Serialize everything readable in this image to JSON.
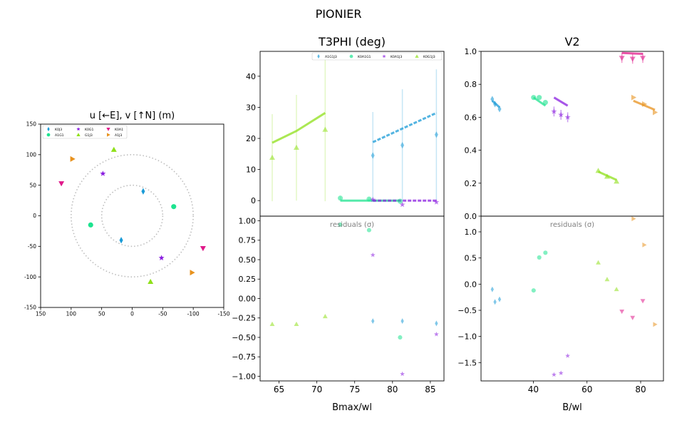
{
  "figure": {
    "title": "PIONIER"
  },
  "colors": {
    "K0J3": "#1a9bd7",
    "A1G1": "#1de38f",
    "K0G1": "#8a1ee0",
    "G1J3": "#8fe019",
    "K0A1": "#e0198a",
    "A1J3": "#e8921e",
    "K0A1G1": "#1de38f",
    "A1G1J3": "#1a9bd7",
    "K0A1J3": "#8a1ee0",
    "K0G1J3": "#8fe019"
  },
  "chart_data": [
    {
      "id": "uv",
      "type": "scatter",
      "title": "u [←E], v [↑N] (m)",
      "xlim": [
        150,
        -150
      ],
      "ylim": [
        -150,
        150
      ],
      "xticks": [
        150,
        100,
        50,
        0,
        -50,
        -100,
        -150
      ],
      "yticks": [
        150,
        100,
        50,
        0,
        -50,
        -100,
        -150
      ],
      "circles_radius": [
        50,
        100
      ],
      "legend": {
        "position": "upper-left",
        "entries": [
          "K0J3",
          "A1G1",
          "K0G1",
          "G1J3",
          "K0A1",
          "A1J3"
        ]
      },
      "series": [
        {
          "name": "K0J3",
          "marker": "diamond",
          "points": [
            [
              -18,
              40
            ],
            [
              18,
              -40
            ]
          ]
        },
        {
          "name": "A1G1",
          "marker": "circle",
          "points": [
            [
              -68,
              15
            ],
            [
              68,
              -15
            ]
          ]
        },
        {
          "name": "K0G1",
          "marker": "star",
          "points": [
            [
              48,
              69
            ],
            [
              -48,
              -69
            ]
          ]
        },
        {
          "name": "G1J3",
          "marker": "triangle-up",
          "points": [
            [
              30,
              108
            ],
            [
              -30,
              -108
            ]
          ]
        },
        {
          "name": "K0A1",
          "marker": "triangle-down",
          "points": [
            [
              116,
              53
            ],
            [
              -116,
              -53
            ]
          ]
        },
        {
          "name": "A1J3",
          "marker": "triangle-right",
          "points": [
            [
              98,
              93
            ],
            [
              -98,
              -93
            ]
          ]
        }
      ]
    },
    {
      "id": "t3phi",
      "type": "scatter",
      "title": "T3PHI (deg)",
      "xlim": [
        62.5,
        86.8
      ],
      "ylim": [
        -5,
        48
      ],
      "yticks": [
        0,
        10,
        20,
        30,
        40
      ],
      "legend": {
        "position": "top-right",
        "entries": [
          "A1G1J3",
          "K0A1G1",
          "K0A1J3",
          "K0G1J3"
        ]
      },
      "series": [
        {
          "name": "A1G1J3",
          "marker": "diamond",
          "x": [
            77.4,
            81.3,
            85.8
          ],
          "y": [
            14.5,
            17.8,
            21.2
          ],
          "err": [
            14,
            18,
            21
          ],
          "model": [
            [
              77.4,
              18.8
            ],
            [
              85.8,
              28.2
            ]
          ]
        },
        {
          "name": "K0A1G1",
          "marker": "circle",
          "x": [
            73.1,
            76.9,
            81.0
          ],
          "y": [
            0.8,
            0.5,
            -0.2
          ],
          "err": [
            0.5,
            0.5,
            0.5
          ],
          "model": [
            [
              73.1,
              0
            ],
            [
              81.0,
              0
            ]
          ]
        },
        {
          "name": "K0A1J3",
          "marker": "star",
          "x": [
            77.4,
            81.3,
            85.8
          ],
          "y": [
            0.3,
            -1.3,
            -0.5
          ],
          "err": [
            0.5,
            0.5,
            0.5
          ],
          "model": [
            [
              77.4,
              0
            ],
            [
              85.8,
              0
            ]
          ]
        },
        {
          "name": "K0G1J3",
          "marker": "triangle-up",
          "x": [
            64.1,
            67.3,
            71.1
          ],
          "y": [
            13.8,
            17.0,
            22.8
          ],
          "err": [
            14,
            17,
            23
          ],
          "model": [
            [
              64.1,
              18.6
            ],
            [
              67.3,
              22.4
            ],
            [
              71.1,
              28.2
            ]
          ]
        }
      ]
    },
    {
      "id": "t3phi_resid",
      "type": "scatter",
      "label": "residuals ($\\sigma$)",
      "xlabel": "Bmax/wl",
      "xlim": [
        62.5,
        86.8
      ],
      "ylim": [
        -1.06,
        1.06
      ],
      "xticks": [
        65,
        70,
        75,
        80,
        85
      ],
      "yticks": [
        1.0,
        0.75,
        0.5,
        0.25,
        0.0,
        -0.25,
        -0.5,
        -0.75,
        -1.0
      ],
      "yticklabels": [
        "1.00",
        "0.75",
        "0.50",
        "0.25",
        "0.00",
        "−0.25",
        "−0.50",
        "−0.75",
        "−1.00"
      ],
      "series": [
        {
          "name": "A1G1J3",
          "marker": "diamond",
          "x": [
            77.4,
            81.3,
            85.8
          ],
          "y": [
            -0.29,
            -0.29,
            -0.32
          ]
        },
        {
          "name": "K0A1G1",
          "marker": "circle",
          "x": [
            73.1,
            76.9,
            81.0
          ],
          "y": [
            0.95,
            0.88,
            -0.5
          ]
        },
        {
          "name": "K0A1J3",
          "marker": "star",
          "x": [
            77.4,
            81.3,
            85.8
          ],
          "y": [
            0.56,
            -0.97,
            -0.46
          ]
        },
        {
          "name": "K0G1J3",
          "marker": "triangle-up",
          "x": [
            64.1,
            67.3,
            71.1
          ],
          "y": [
            -0.33,
            -0.33,
            -0.23
          ]
        }
      ]
    },
    {
      "id": "v2",
      "type": "scatter",
      "title": "V2",
      "xlim": [
        20.5,
        88.5
      ],
      "ylim": [
        0,
        1.0
      ],
      "yticks": [
        0.0,
        0.2,
        0.4,
        0.6,
        0.8,
        1.0
      ],
      "yticklabels": [
        "0.0",
        "0.2",
        "0.4",
        "0.6",
        "0.8",
        "1.0"
      ],
      "series": [
        {
          "name": "K0J3",
          "marker": "diamond",
          "x": [
            24.7,
            25.7,
            27.4
          ],
          "y": [
            0.71,
            0.68,
            0.65
          ],
          "model": [
            [
              24.7,
              0.7
            ],
            [
              27.4,
              0.66
            ]
          ]
        },
        {
          "name": "A1G1",
          "marker": "circle",
          "x": [
            40.1,
            42.2,
            44.5
          ],
          "y": [
            0.72,
            0.72,
            0.69
          ],
          "model": [
            [
              40.1,
              0.72
            ],
            [
              44.5,
              0.67
            ]
          ]
        },
        {
          "name": "K0G1",
          "marker": "star",
          "x": [
            47.7,
            50.3,
            52.8
          ],
          "y": [
            0.635,
            0.615,
            0.6
          ],
          "err": [
            0.03,
            0.03,
            0.03
          ],
          "model": [
            [
              47.7,
              0.72
            ],
            [
              52.8,
              0.67
            ]
          ]
        },
        {
          "name": "G1J3",
          "marker": "triangle-up",
          "x": [
            64.2,
            67.5,
            71.0
          ],
          "y": [
            0.275,
            0.24,
            0.21
          ],
          "model": [
            [
              64.2,
              0.27
            ],
            [
              71.0,
              0.22
            ]
          ]
        },
        {
          "name": "K0A1",
          "marker": "triangle-down",
          "x": [
            73.0,
            77.0,
            80.8
          ],
          "y": [
            0.96,
            0.955,
            0.96
          ],
          "err": [
            0.03,
            0.03,
            0.03
          ],
          "model": [
            [
              73.0,
              0.99
            ],
            [
              80.8,
              0.985
            ]
          ]
        },
        {
          "name": "A1J3",
          "marker": "triangle-right",
          "x": [
            77.3,
            81.3,
            85.3
          ],
          "y": [
            0.72,
            0.68,
            0.63
          ],
          "model": [
            [
              77.3,
              0.7
            ],
            [
              85.3,
              0.645
            ]
          ]
        }
      ]
    },
    {
      "id": "v2_resid",
      "type": "scatter",
      "label": "residuals ($\\sigma$)",
      "xlabel": "B/wl",
      "xlim": [
        20.5,
        88.5
      ],
      "ylim": [
        -1.85,
        1.3
      ],
      "xticks": [
        40,
        60,
        80
      ],
      "yticks": [
        1.0,
        0.5,
        0.0,
        -0.5,
        -1.0,
        -1.5
      ],
      "yticklabels": [
        "1.0",
        "0.5",
        "0.0",
        "−0.5",
        "−1.0",
        "−1.5"
      ],
      "series": [
        {
          "name": "K0J3",
          "marker": "diamond",
          "x": [
            24.7,
            25.7,
            27.4
          ],
          "y": [
            -0.1,
            -0.34,
            -0.29
          ]
        },
        {
          "name": "A1G1",
          "marker": "circle",
          "x": [
            40.1,
            42.2,
            44.5
          ],
          "y": [
            -0.12,
            0.51,
            0.6
          ]
        },
        {
          "name": "K0G1",
          "marker": "star",
          "x": [
            47.7,
            50.3,
            52.8
          ],
          "y": [
            -1.73,
            -1.7,
            -1.37
          ]
        },
        {
          "name": "G1J3",
          "marker": "triangle-up",
          "x": [
            64.2,
            67.5,
            71.0
          ],
          "y": [
            0.41,
            0.09,
            -0.1
          ]
        },
        {
          "name": "K0A1",
          "marker": "triangle-down",
          "x": [
            73.0,
            77.0,
            80.8
          ],
          "y": [
            -0.52,
            -0.64,
            -0.32
          ]
        },
        {
          "name": "A1J3",
          "marker": "triangle-right",
          "x": [
            77.3,
            81.3,
            85.3
          ],
          "y": [
            1.25,
            0.75,
            -0.77
          ]
        }
      ]
    }
  ]
}
